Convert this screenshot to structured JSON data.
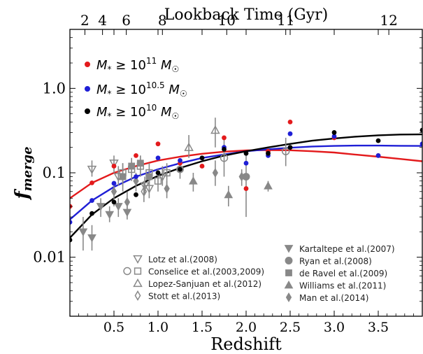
{
  "chart_data": {
    "type": "scatter",
    "xlabel": "Redshift",
    "ylabel": "f_merge",
    "top_axis_label": "Lookback Time (Gyr)",
    "xlim": [
      0,
      4
    ],
    "ylim": [
      0.002,
      5
    ],
    "yscale": "log",
    "x_ticks": [
      0.5,
      1.0,
      1.5,
      2.0,
      2.5,
      3.0,
      3.5
    ],
    "x_tick_labels": [
      "0.5",
      "1.0",
      "1.5",
      "2.0",
      "2.5",
      "3.0",
      "3.5"
    ],
    "y_ticks": [
      0.01,
      0.1,
      1.0
    ],
    "y_tick_labels": [
      "0.01",
      "0.1",
      "1.0"
    ],
    "top_ticks_gyr": [
      2,
      4,
      6,
      8,
      10,
      11,
      12
    ],
    "top_tick_labels": [
      "2",
      "4",
      "6",
      "8",
      "10",
      "11",
      "12"
    ],
    "legend_placement": "top-left",
    "series": [
      {
        "name": "M* ≥ 10^11 M☉",
        "color": "#e31a1c",
        "x": [
          0.0,
          0.25,
          0.5,
          0.75,
          1.0,
          1.25,
          1.5,
          1.75,
          2.0,
          2.25,
          2.5,
          3.0,
          3.5
        ],
        "y": [
          0.04,
          0.076,
          0.12,
          0.16,
          0.22,
          0.13,
          0.12,
          0.26,
          0.065,
          0.18,
          0.4,
          0.26,
          0.16
        ]
      },
      {
        "name": "M* ≥ 10^10.5 M☉",
        "color": "#1f1fd6",
        "x": [
          0.0,
          0.25,
          0.5,
          0.75,
          1.0,
          1.25,
          1.5,
          1.75,
          2.0,
          2.25,
          2.5,
          3.0,
          3.5,
          4.0
        ],
        "y": [
          0.026,
          0.047,
          0.075,
          0.09,
          0.15,
          0.14,
          0.15,
          0.2,
          0.13,
          0.16,
          0.29,
          0.27,
          0.16,
          0.22
        ]
      },
      {
        "name": "M* ≥ 10^10 M☉",
        "color": "#000000",
        "x": [
          0.0,
          0.25,
          0.5,
          0.75,
          1.0,
          1.25,
          1.5,
          1.75,
          2.0,
          2.25,
          2.5,
          3.0,
          3.5,
          4.0
        ],
        "y": [
          0.016,
          0.033,
          0.045,
          0.055,
          0.1,
          0.11,
          0.15,
          0.19,
          0.17,
          0.17,
          0.2,
          0.3,
          0.24,
          0.32
        ]
      }
    ],
    "fits": [
      {
        "color": "#e31a1c",
        "x": [
          0.0,
          0.25,
          0.5,
          0.75,
          1.0,
          1.25,
          1.5,
          1.75,
          2.0,
          2.25,
          2.5,
          2.75,
          3.0,
          3.25,
          3.5,
          3.75,
          4.0
        ],
        "y": [
          0.05,
          0.076,
          0.1,
          0.12,
          0.14,
          0.155,
          0.168,
          0.178,
          0.184,
          0.186,
          0.185,
          0.18,
          0.174,
          0.164,
          0.155,
          0.146,
          0.137
        ]
      },
      {
        "color": "#1f1fd6",
        "x": [
          0.0,
          0.25,
          0.5,
          0.75,
          1.0,
          1.25,
          1.5,
          1.75,
          2.0,
          2.25,
          2.5,
          2.75,
          3.0,
          3.25,
          3.5,
          3.75,
          4.0
        ],
        "y": [
          0.028,
          0.047,
          0.068,
          0.09,
          0.11,
          0.13,
          0.15,
          0.165,
          0.18,
          0.19,
          0.198,
          0.205,
          0.208,
          0.21,
          0.21,
          0.209,
          0.208
        ]
      },
      {
        "color": "#000000",
        "x": [
          0.0,
          0.25,
          0.5,
          0.75,
          1.0,
          1.25,
          1.5,
          1.75,
          2.0,
          2.25,
          2.5,
          2.75,
          3.0,
          3.25,
          3.5,
          3.75,
          4.0
        ],
        "y": [
          0.017,
          0.032,
          0.05,
          0.07,
          0.092,
          0.114,
          0.137,
          0.16,
          0.18,
          0.2,
          0.22,
          0.24,
          0.255,
          0.268,
          0.278,
          0.284,
          0.285
        ]
      }
    ],
    "literature": [
      {
        "ref": "lotz",
        "marker": "tri-down-open",
        "points": [
          {
            "x": 0.25,
            "y": 0.11,
            "lo": 0.09,
            "hi": 0.14
          },
          {
            "x": 0.5,
            "y": 0.13,
            "lo": 0.1,
            "hi": 0.16
          },
          {
            "x": 0.55,
            "y": 0.09,
            "lo": 0.07,
            "hi": 0.12
          },
          {
            "x": 0.85,
            "y": 0.07,
            "lo": 0.055,
            "hi": 0.09
          },
          {
            "x": 0.9,
            "y": 0.065,
            "lo": 0.05,
            "hi": 0.085
          },
          {
            "x": 1.05,
            "y": 0.09,
            "lo": 0.07,
            "hi": 0.12
          }
        ]
      },
      {
        "ref": "conselice",
        "marker": "square-open",
        "points": [
          {
            "x": 0.6,
            "y": 0.1,
            "lo": 0.07,
            "hi": 0.13
          },
          {
            "x": 0.7,
            "y": 0.11,
            "lo": 0.08,
            "hi": 0.15
          },
          {
            "x": 0.8,
            "y": 0.12,
            "lo": 0.09,
            "hi": 0.16
          },
          {
            "x": 0.9,
            "y": 0.1,
            "lo": 0.075,
            "hi": 0.13
          },
          {
            "x": 1.0,
            "y": 0.08,
            "lo": 0.06,
            "hi": 0.11
          },
          {
            "x": 1.1,
            "y": 0.1,
            "lo": 0.07,
            "hi": 0.13
          }
        ]
      },
      {
        "ref": "conselice_circle",
        "marker": "circle-open",
        "points": [
          {
            "x": 1.75,
            "y": 0.15,
            "lo": 0.09,
            "hi": 0.25
          },
          {
            "x": 2.45,
            "y": 0.18,
            "lo": 0.12,
            "hi": 0.26
          }
        ]
      },
      {
        "ref": "lopez",
        "marker": "tri-up-open",
        "points": [
          {
            "x": 1.35,
            "y": 0.2,
            "lo": 0.15,
            "hi": 0.28
          },
          {
            "x": 1.65,
            "y": 0.32,
            "lo": 0.2,
            "hi": 0.45
          }
        ]
      },
      {
        "ref": "stott",
        "marker": "diamond-open",
        "points": [
          {
            "x": 0.84,
            "y": 0.06,
            "lo": 0.045,
            "hi": 0.08
          }
        ]
      },
      {
        "ref": "kartaltepe",
        "marker": "tri-down-filled",
        "points": [
          {
            "x": 0.15,
            "y": 0.02,
            "lo": 0.012,
            "hi": 0.03
          },
          {
            "x": 0.25,
            "y": 0.017,
            "lo": 0.012,
            "hi": 0.024
          },
          {
            "x": 0.35,
            "y": 0.04,
            "lo": 0.03,
            "hi": 0.05
          },
          {
            "x": 0.45,
            "y": 0.032,
            "lo": 0.026,
            "hi": 0.04
          },
          {
            "x": 0.55,
            "y": 0.04,
            "lo": 0.03,
            "hi": 0.05
          },
          {
            "x": 0.65,
            "y": 0.034,
            "lo": 0.028,
            "hi": 0.04
          }
        ]
      },
      {
        "ref": "ryan",
        "marker": "circle-filled",
        "points": [
          {
            "x": 1.25,
            "y": 0.11,
            "lo": 0.085,
            "hi": 0.14
          },
          {
            "x": 2.0,
            "y": 0.09,
            "lo": 0.03,
            "hi": 0.16
          }
        ]
      },
      {
        "ref": "deravel",
        "marker": "square-filled",
        "points": [
          {
            "x": 0.6,
            "y": 0.09,
            "lo": 0.06,
            "hi": 0.13
          },
          {
            "x": 0.7,
            "y": 0.12,
            "lo": 0.1,
            "hi": 0.14
          },
          {
            "x": 0.8,
            "y": 0.13,
            "lo": 0.1,
            "hi": 0.16
          },
          {
            "x": 0.9,
            "y": 0.09,
            "lo": 0.07,
            "hi": 0.11
          }
        ]
      },
      {
        "ref": "williams",
        "marker": "tri-up-filled",
        "points": [
          {
            "x": 1.4,
            "y": 0.08,
            "lo": 0.06,
            "hi": 0.1
          },
          {
            "x": 1.8,
            "y": 0.055,
            "lo": 0.04,
            "hi": 0.07
          },
          {
            "x": 2.25,
            "y": 0.07,
            "lo": 0.06,
            "hi": 0.08
          }
        ]
      },
      {
        "ref": "man",
        "marker": "diamond-filled",
        "points": [
          {
            "x": 0.5,
            "y": 0.06,
            "lo": 0.04,
            "hi": 0.08
          },
          {
            "x": 0.65,
            "y": 0.045,
            "lo": 0.035,
            "hi": 0.06
          },
          {
            "x": 0.75,
            "y": 0.08,
            "lo": 0.06,
            "hi": 0.1
          },
          {
            "x": 1.1,
            "y": 0.065,
            "lo": 0.05,
            "hi": 0.08
          },
          {
            "x": 1.65,
            "y": 0.1,
            "lo": 0.07,
            "hi": 0.14
          },
          {
            "x": 1.95,
            "y": 0.09,
            "lo": 0.07,
            "hi": 0.11
          }
        ]
      }
    ],
    "literature_legend_left": [
      {
        "marker": "tri-down-open",
        "label": "Lotz et al.(2008)"
      },
      {
        "marker": "circle-square-open",
        "label": "Conselice et al.(2003,2009)"
      },
      {
        "marker": "tri-up-open",
        "label": "Lopez-Sanjuan et al.(2012)"
      },
      {
        "marker": "diamond-open",
        "label": "Stott et al.(2013)"
      }
    ],
    "literature_legend_right": [
      {
        "marker": "tri-down-filled",
        "label": "Kartaltepe et al.(2007)"
      },
      {
        "marker": "circle-filled",
        "label": "Ryan et al.(2008)"
      },
      {
        "marker": "square-filled",
        "label": "de Ravel et al.(2009)"
      },
      {
        "marker": "tri-up-filled",
        "label": "Williams et al.(2011)"
      },
      {
        "marker": "diamond-filled",
        "label": "Man et al.(2014)"
      }
    ],
    "literature_color": "#888888"
  }
}
